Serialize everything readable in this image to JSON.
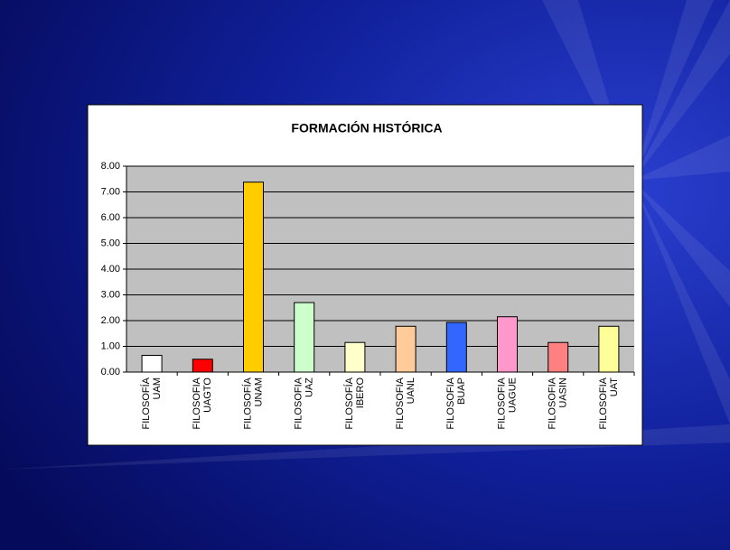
{
  "chart_data": {
    "type": "bar",
    "title": "FORMACIÓN HISTÓRICA",
    "categories": [
      [
        "FILOSOFÍA",
        "UAM"
      ],
      [
        "FILOSOFIA",
        "UAGTO"
      ],
      [
        "FILOSOFÍA",
        "UNAM"
      ],
      [
        "FILOSOFIA",
        "UAZ"
      ],
      [
        "FILOSOFÍA",
        "IBERO"
      ],
      [
        "FILOSOFIA",
        "UANL"
      ],
      [
        "FILOSOFIA",
        "BUAP"
      ],
      [
        "FILOSOFIA",
        "UAGUE"
      ],
      [
        "FILOSOFIA",
        "UASIN"
      ],
      [
        "FILOSOFIA",
        "UAT"
      ]
    ],
    "values": [
      0.65,
      0.5,
      7.38,
      2.7,
      1.15,
      1.78,
      1.93,
      2.15,
      1.15,
      1.78
    ],
    "colors": [
      "#ffffff",
      "#ff0000",
      "#ffcc00",
      "#ccffcc",
      "#ffffcc",
      "#ffcc99",
      "#3366ff",
      "#ff99cc",
      "#ff8080",
      "#ffff99"
    ],
    "ylim": [
      0,
      8
    ],
    "yticks": [
      {
        "value": 0,
        "label": "0.00"
      },
      {
        "value": 1,
        "label": "1.00"
      },
      {
        "value": 2,
        "label": "2.00"
      },
      {
        "value": 3,
        "label": "3.00"
      },
      {
        "value": 4,
        "label": "4.00"
      },
      {
        "value": 5,
        "label": "5.00"
      },
      {
        "value": 6,
        "label": "6.00"
      },
      {
        "value": 7,
        "label": "7.00"
      },
      {
        "value": 8,
        "label": "8.00"
      }
    ],
    "grid": true
  }
}
